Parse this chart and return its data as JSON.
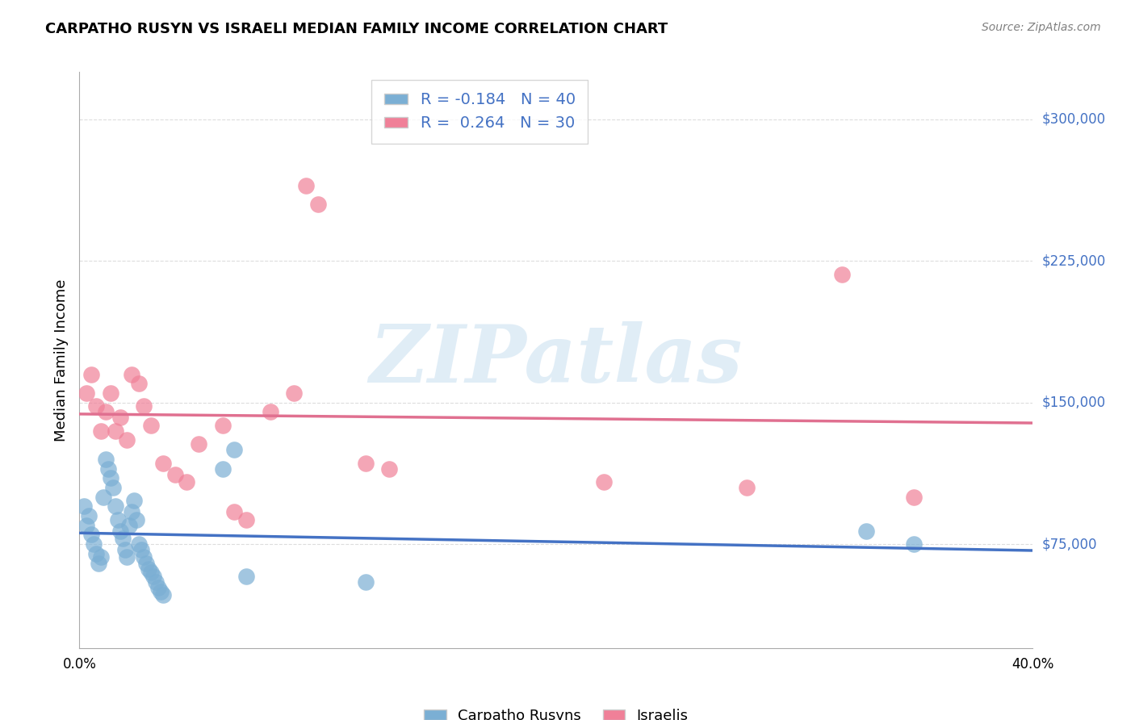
{
  "title": "CARPATHO RUSYN VS ISRAELI MEDIAN FAMILY INCOME CORRELATION CHART",
  "source": "Source: ZipAtlas.com",
  "ylabel": "Median Family Income",
  "yticks": [
    0,
    75000,
    150000,
    225000,
    300000
  ],
  "ytick_labels": [
    "",
    "$75,000",
    "$150,000",
    "$225,000",
    "$300,000"
  ],
  "xmin": 0.0,
  "xmax": 0.4,
  "ymin": 20000,
  "ymax": 325000,
  "carpatho_rusyn_x": [
    0.002,
    0.003,
    0.004,
    0.005,
    0.006,
    0.007,
    0.008,
    0.009,
    0.01,
    0.011,
    0.012,
    0.013,
    0.014,
    0.015,
    0.016,
    0.017,
    0.018,
    0.019,
    0.02,
    0.021,
    0.022,
    0.023,
    0.024,
    0.025,
    0.026,
    0.027,
    0.028,
    0.029,
    0.03,
    0.031,
    0.032,
    0.033,
    0.034,
    0.035,
    0.06,
    0.065,
    0.07,
    0.12,
    0.33,
    0.35
  ],
  "carpatho_rusyn_y": [
    95000,
    85000,
    90000,
    80000,
    75000,
    70000,
    65000,
    68000,
    100000,
    120000,
    115000,
    110000,
    105000,
    95000,
    88000,
    82000,
    78000,
    72000,
    68000,
    85000,
    92000,
    98000,
    88000,
    75000,
    72000,
    68000,
    65000,
    62000,
    60000,
    58000,
    55000,
    52000,
    50000,
    48000,
    115000,
    125000,
    58000,
    55000,
    82000,
    75000
  ],
  "israeli_x": [
    0.003,
    0.005,
    0.007,
    0.009,
    0.011,
    0.013,
    0.015,
    0.017,
    0.02,
    0.022,
    0.025,
    0.027,
    0.03,
    0.035,
    0.04,
    0.045,
    0.05,
    0.06,
    0.065,
    0.07,
    0.08,
    0.09,
    0.095,
    0.1,
    0.12,
    0.13,
    0.22,
    0.28,
    0.32,
    0.35
  ],
  "israeli_y": [
    155000,
    165000,
    148000,
    135000,
    145000,
    155000,
    135000,
    142000,
    130000,
    165000,
    160000,
    148000,
    138000,
    118000,
    112000,
    108000,
    128000,
    138000,
    92000,
    88000,
    145000,
    155000,
    265000,
    255000,
    118000,
    115000,
    108000,
    105000,
    218000,
    100000
  ],
  "blue_color": "#7bafd4",
  "pink_color": "#f08098",
  "blue_line_color": "#4472c4",
  "pink_line_color": "#e07090",
  "legend_text_color": "#4472c4",
  "watermark_text": "ZIPatlas",
  "background_color": "#ffffff",
  "grid_color": "#dddddd"
}
